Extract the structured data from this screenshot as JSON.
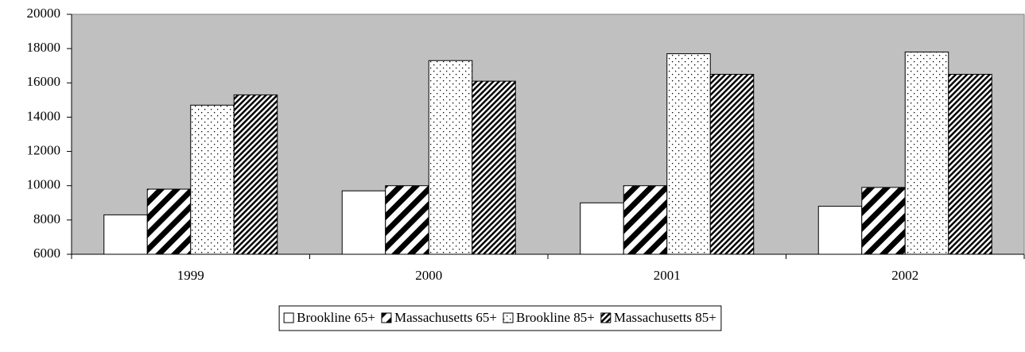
{
  "chart_data": {
    "type": "bar",
    "categories": [
      "1999",
      "2000",
      "2001",
      "2002"
    ],
    "series": [
      {
        "name": "Brookline 65+",
        "color": "#ffffff",
        "pattern": "none",
        "values": [
          8300,
          9700,
          9000,
          8800
        ]
      },
      {
        "name": "Massachusetts 65+",
        "color": "#ffffff",
        "pattern": "wide-diagonal",
        "values": [
          9800,
          10000,
          10000,
          9900
        ]
      },
      {
        "name": "Brookline 85+",
        "color": "#ffffff",
        "pattern": "dots",
        "values": [
          14700,
          17300,
          17700,
          17800
        ]
      },
      {
        "name": "Massachusetts 85+",
        "color": "#ffffff",
        "pattern": "dense-diagonal",
        "values": [
          15300,
          16100,
          16500,
          16500
        ]
      }
    ],
    "ylim": [
      6000,
      20000
    ],
    "yticks": [
      6000,
      8000,
      10000,
      12000,
      14000,
      16000,
      18000,
      20000
    ],
    "grid": false,
    "plot_background": "#c0c0c0",
    "legend": "bottom"
  }
}
